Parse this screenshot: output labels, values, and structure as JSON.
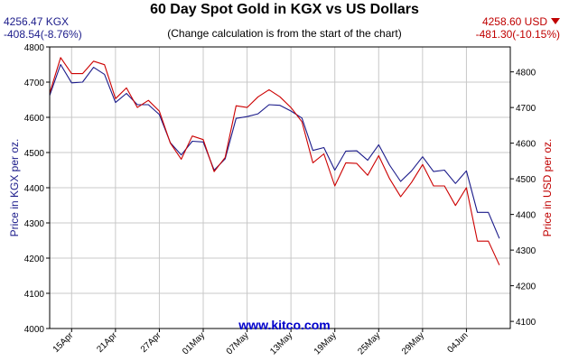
{
  "header": {
    "title": "60 Day Spot Gold in KGX vs US Dollars",
    "subtitle": "(Change calculation is from the start of the chart)",
    "left_price": "4256.47 KGX",
    "left_change": "-408.54(-8.76%)",
    "right_price": "4258.60 USD",
    "right_change": "-481.30(-10.15%)",
    "right_arrow_icon": "triangle-down-icon"
  },
  "watermark": "www.kitco.com",
  "colors": {
    "kgx": "#1b1b8a",
    "usd": "#cc0000",
    "grid": "#c8c8c8",
    "axis": "#000000"
  },
  "chart_data": {
    "type": "line",
    "x_tick_labels": [
      "15Apr",
      "21Apr",
      "27Apr",
      "01May",
      "07May",
      "13May",
      "19May",
      "25May",
      "29May",
      "04Jun"
    ],
    "x_tick_index": [
      2,
      6,
      10,
      14,
      18,
      22,
      26,
      30,
      34,
      38
    ],
    "x_count": 43,
    "y_left": {
      "label": "Price in KGX per oz.",
      "min": 4000,
      "max": 4800,
      "ticks": [
        4000,
        4100,
        4200,
        4300,
        4400,
        4500,
        4600,
        4700,
        4800
      ]
    },
    "y_right": {
      "label": "Price in USD per oz.",
      "min": 4080,
      "max": 4870,
      "ticks": [
        4100,
        4200,
        4300,
        4400,
        4500,
        4600,
        4700,
        4800
      ]
    },
    "grid": true,
    "series": [
      {
        "axis": "left",
        "values": [
          4662,
          4750,
          4698,
          4700,
          4742,
          4722,
          4642,
          4668,
          4636,
          4636,
          4608,
          4528,
          4493,
          4532,
          4530,
          4450,
          4482,
          4597,
          4602,
          4610,
          4636,
          4634,
          4618,
          4598,
          4506,
          4514,
          4450,
          4504,
          4505,
          4478,
          4522,
          4464,
          4418,
          4448,
          4488,
          4446,
          4450,
          4412,
          4448,
          4330,
          4330,
          4256
        ]
      },
      {
        "axis": "right",
        "values": [
          4740,
          4840,
          4795,
          4795,
          4830,
          4820,
          4725,
          4755,
          4700,
          4720,
          4690,
          4600,
          4555,
          4620,
          4610,
          4520,
          4560,
          4705,
          4700,
          4730,
          4750,
          4730,
          4700,
          4660,
          4545,
          4570,
          4480,
          4545,
          4543,
          4510,
          4565,
          4500,
          4450,
          4490,
          4540,
          4480,
          4480,
          4425,
          4475,
          4325,
          4325,
          4258
        ]
      }
    ]
  }
}
